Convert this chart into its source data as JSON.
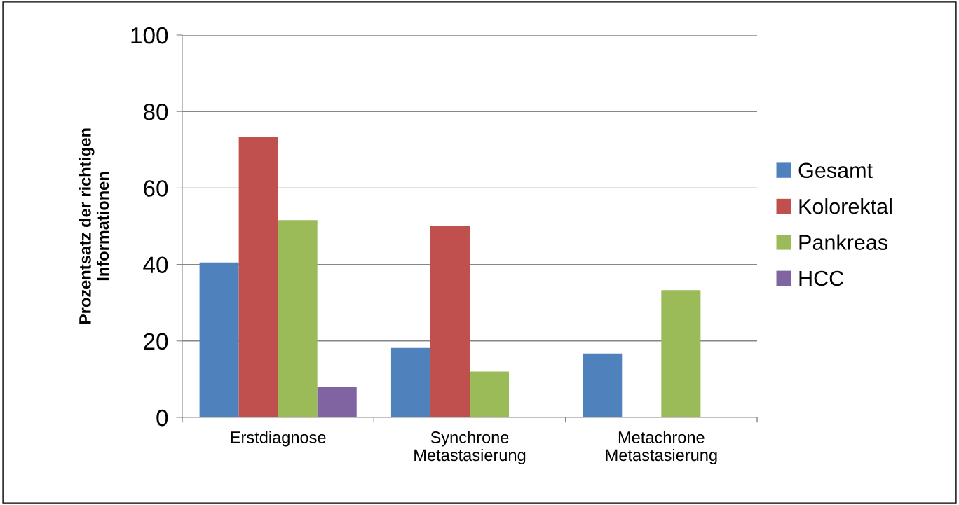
{
  "chart_data": {
    "type": "bar",
    "ylabel": "Prozentsatz der richtigen\nInformationen",
    "categories": [
      "Erstdiagnose",
      "Synchrone\nMetastasierung",
      "Metachrone\nMetastasierung"
    ],
    "series": [
      {
        "name": "Gesamt",
        "color": "#4f81bd",
        "values": [
          40.5,
          18.2,
          16.7
        ]
      },
      {
        "name": "Kolorektal",
        "color": "#c0504d",
        "values": [
          73.3,
          50.0,
          0
        ]
      },
      {
        "name": "Pankreas",
        "color": "#9bbb59",
        "values": [
          51.6,
          12.0,
          33.3
        ]
      },
      {
        "name": "HCC",
        "color": "#8064a2",
        "values": [
          8.0,
          0,
          0
        ]
      }
    ],
    "ylim": [
      0,
      100
    ],
    "yticks": [
      0,
      20,
      40,
      60,
      80,
      100
    ],
    "grid": "y",
    "legend": "right"
  }
}
